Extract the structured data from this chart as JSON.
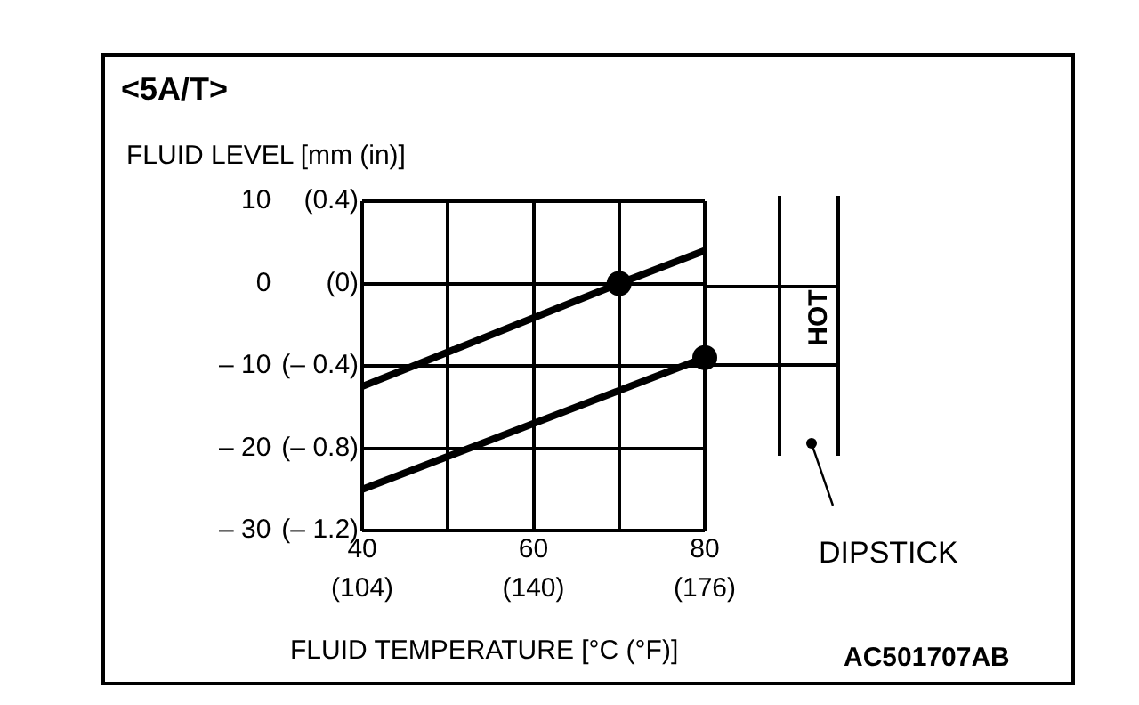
{
  "chart_data": {
    "type": "line",
    "title": "<5A/T>",
    "xlabel": "FLUID TEMPERATURE [°C (°F)]",
    "ylabel": "FLUID LEVEL [mm (in)]",
    "series": [
      {
        "type": "line",
        "color": "#000000",
        "x": [
          40,
          70,
          80
        ],
        "values": [
          -12.5,
          0,
          4
        ]
      },
      {
        "type": "line",
        "color": "#000000",
        "x": [
          40,
          80
        ],
        "values": [
          -25,
          -9
        ]
      },
      {
        "type": "scatter",
        "color": "#000000",
        "marker": "circle",
        "x": [
          70,
          80
        ],
        "values": [
          0,
          -9
        ]
      }
    ],
    "xlim": [
      40,
      80
    ],
    "xticks": [
      40,
      {
        "value": 50,
        "label": null
      },
      60,
      {
        "value": 70,
        "label": null
      },
      80
    ],
    "x2lim": [
      104,
      176
    ],
    "x2ticks": [
      {
        "value": 104,
        "label": "(104)"
      },
      {
        "value": 140,
        "label": "(140)"
      },
      {
        "value": 176,
        "label": "(176)"
      }
    ],
    "ylim": [
      -30,
      10
    ],
    "yticks": [
      10,
      0,
      {
        "value": -10,
        "label": "– 10"
      },
      {
        "value": -20,
        "label": "– 20"
      },
      {
        "value": -30,
        "label": "– 30"
      }
    ],
    "y2lim": [
      -1.2,
      0.4
    ],
    "y2ticks": [
      {
        "value": 0.4,
        "label": "(0.4)"
      },
      {
        "value": 0,
        "label": "(0)"
      },
      {
        "value": -0.4,
        "label": "(– 0.4)"
      },
      {
        "value": -0.8,
        "label": "(– 0.8)"
      },
      {
        "value": -1.2,
        "label": "(– 1.2)"
      }
    ],
    "grid": true,
    "legend": false,
    "marker": "none",
    "line_style": "solid",
    "annotations": [
      "HOT",
      "DIPSTICK",
      "AC501707AB"
    ]
  }
}
